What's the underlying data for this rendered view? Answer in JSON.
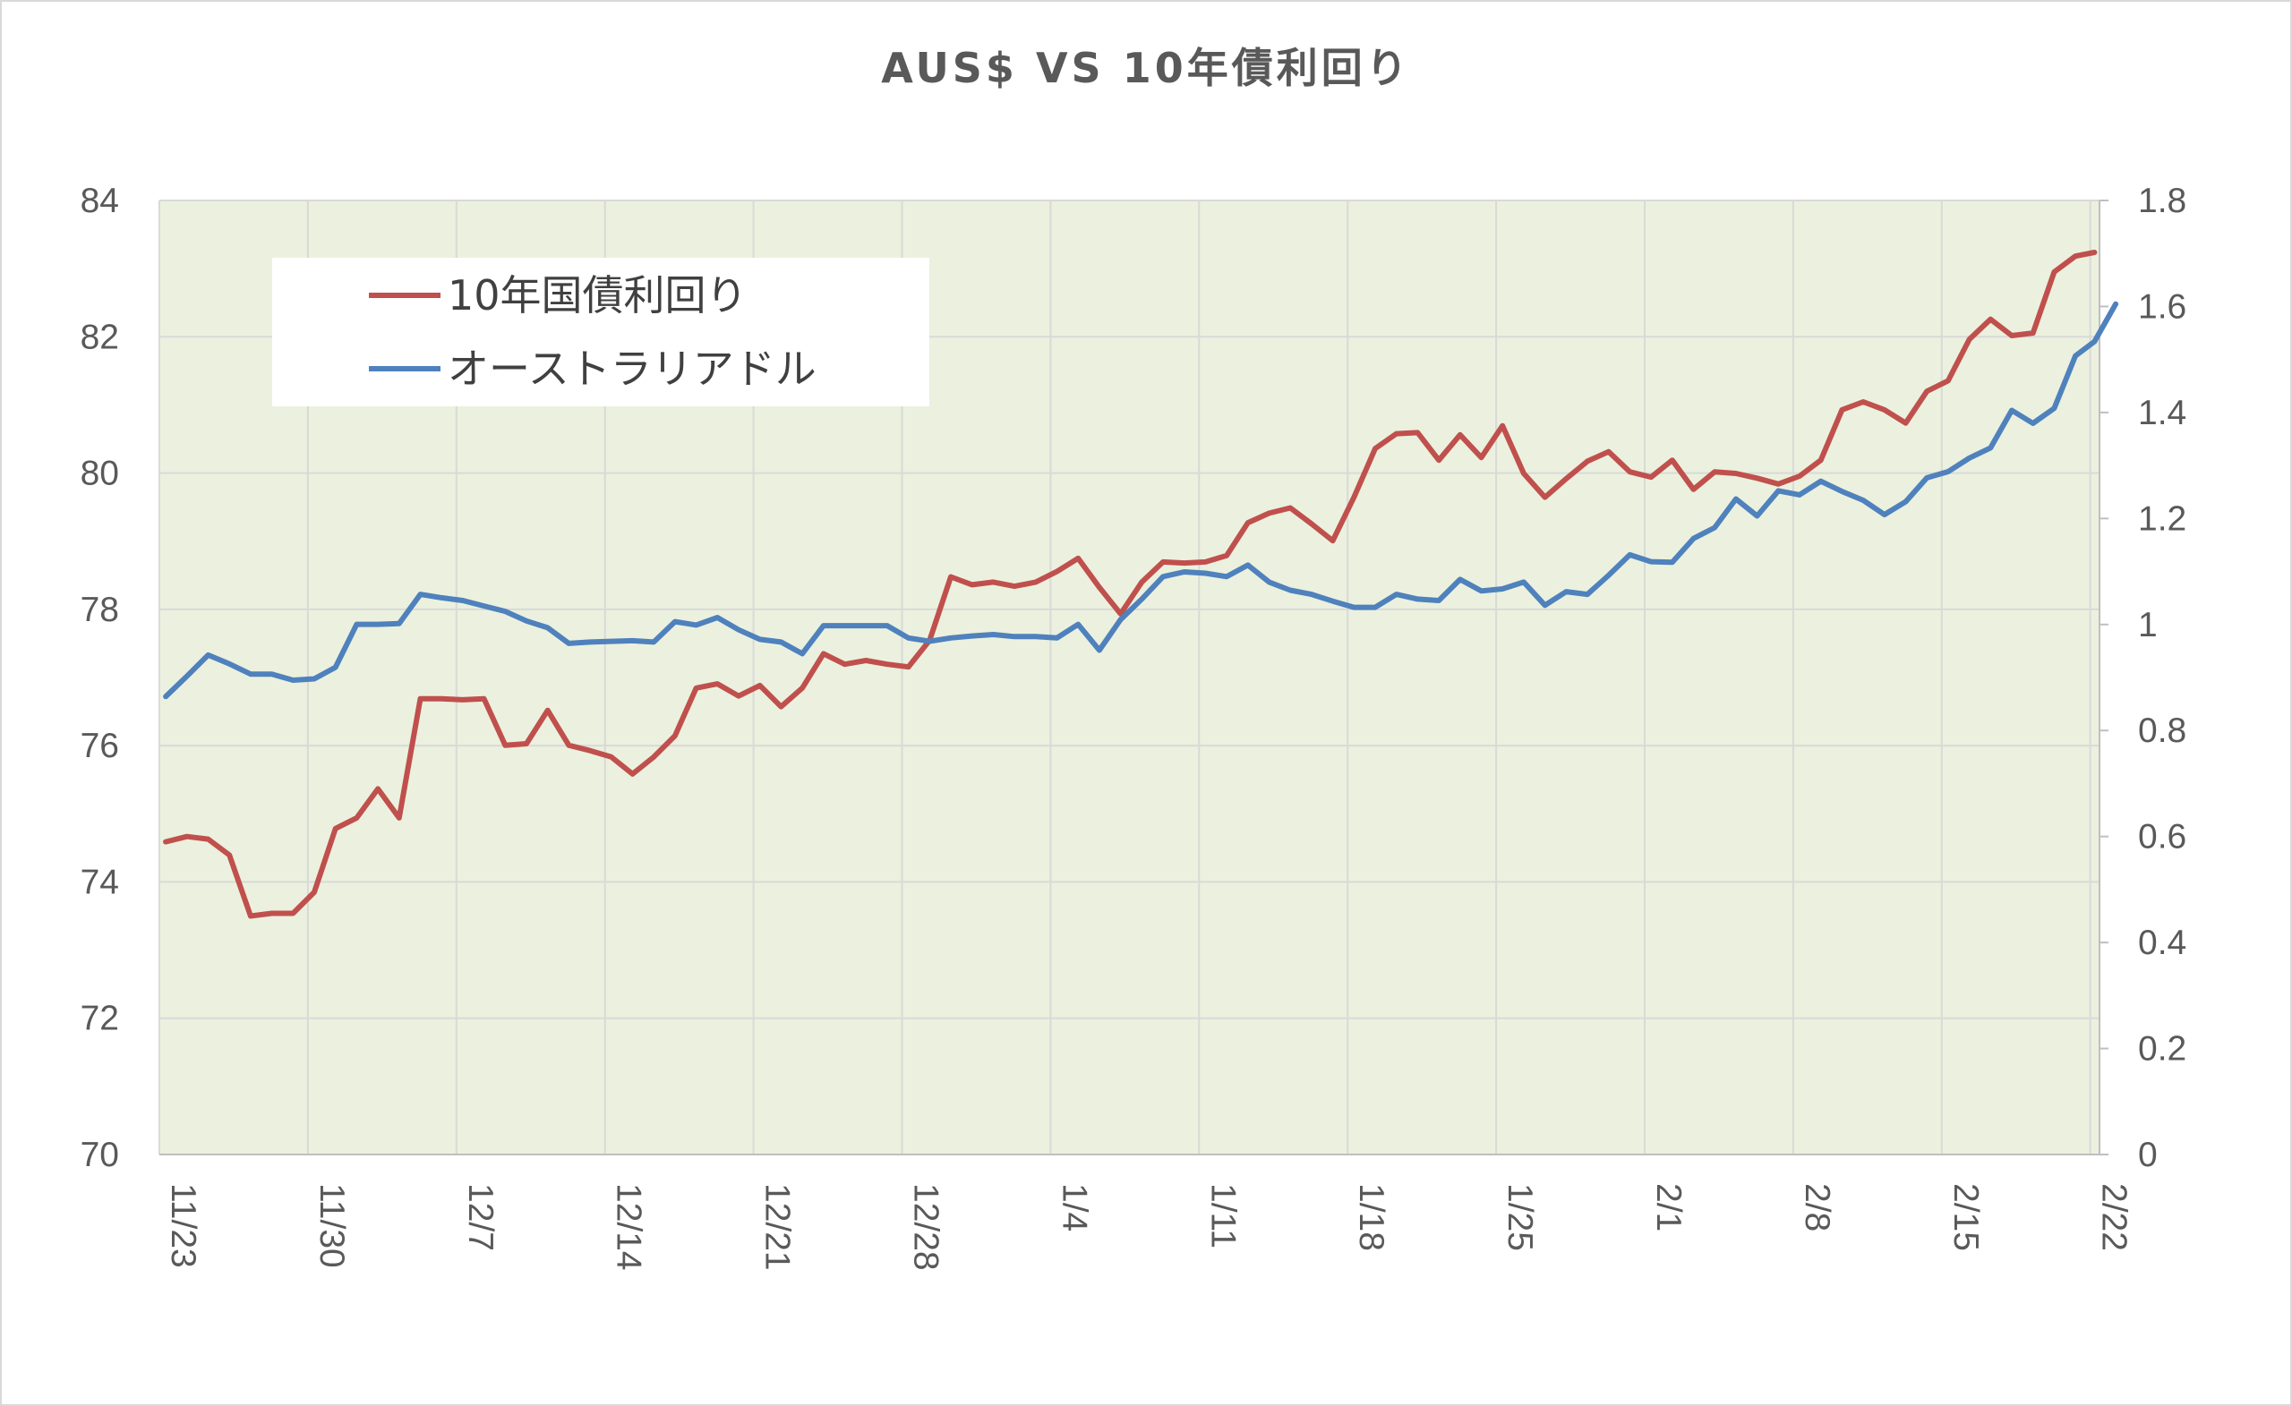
{
  "chart_data": {
    "type": "line",
    "title": "AUS$ VS 10年債利回り",
    "x_tick_labels": [
      "11/23",
      "11/30",
      "12/7",
      "12/14",
      "12/21",
      "12/28",
      "1/4",
      "1/11",
      "1/18",
      "1/25",
      "2/1",
      "2/8",
      "2/15",
      "2/22"
    ],
    "y_left": {
      "min": 70,
      "max": 84,
      "step": 2,
      "ticks": [
        "70",
        "72",
        "74",
        "76",
        "78",
        "80",
        "82",
        "84"
      ]
    },
    "y_right": {
      "min": 0,
      "max": 1.8,
      "step": 0.2,
      "ticks": [
        "0",
        "0.2",
        "0.4",
        "0.6",
        "0.8",
        "1",
        "1.2",
        "1.4",
        "1.6",
        "1.8"
      ]
    },
    "x_range_days": [
      0,
      91.5
    ],
    "grid": true,
    "plot_background": "#ebf1de",
    "legend_position": "top-left",
    "series": [
      {
        "name": "10年国債利回り",
        "axis": "right",
        "color": "#c0504d",
        "points": [
          [
            0.3,
            0.59
          ],
          [
            1.3,
            0.6
          ],
          [
            2.3,
            0.595
          ],
          [
            3.3,
            0.565
          ],
          [
            4.3,
            0.45
          ],
          [
            5.3,
            0.455
          ],
          [
            6.3,
            0.455
          ],
          [
            7.3,
            0.495
          ],
          [
            8.3,
            0.615
          ],
          [
            9.3,
            0.635
          ],
          [
            10.3,
            0.69
          ],
          [
            11.3,
            0.635
          ],
          [
            12.3,
            0.86
          ],
          [
            13.3,
            0.86
          ],
          [
            14.3,
            0.858
          ],
          [
            15.3,
            0.86
          ],
          [
            16.3,
            0.772
          ],
          [
            17.3,
            0.775
          ],
          [
            18.3,
            0.838
          ],
          [
            19.3,
            0.772
          ],
          [
            20.3,
            0.762
          ],
          [
            21.3,
            0.75
          ],
          [
            22.3,
            0.718
          ],
          [
            23.3,
            0.75
          ],
          [
            24.3,
            0.79
          ],
          [
            25.3,
            0.88
          ],
          [
            26.3,
            0.888
          ],
          [
            27.3,
            0.865
          ],
          [
            28.3,
            0.885
          ],
          [
            29.3,
            0.845
          ],
          [
            30.3,
            0.88
          ],
          [
            31.3,
            0.945
          ],
          [
            32.3,
            0.925
          ],
          [
            33.3,
            0.932
          ],
          [
            34.3,
            0.925
          ],
          [
            35.3,
            0.92
          ],
          [
            36.3,
            0.97
          ],
          [
            37.3,
            1.09
          ],
          [
            38.3,
            1.075
          ],
          [
            39.3,
            1.08
          ],
          [
            40.3,
            1.072
          ],
          [
            41.3,
            1.08
          ],
          [
            42.3,
            1.1
          ],
          [
            43.3,
            1.125
          ],
          [
            44.3,
            1.07
          ],
          [
            45.3,
            1.02
          ],
          [
            46.3,
            1.08
          ],
          [
            47.3,
            1.118
          ],
          [
            48.3,
            1.116
          ],
          [
            49.3,
            1.118
          ],
          [
            50.3,
            1.13
          ],
          [
            51.3,
            1.192
          ],
          [
            52.3,
            1.21
          ],
          [
            53.3,
            1.22
          ],
          [
            54.3,
            1.19
          ],
          [
            55.3,
            1.158
          ],
          [
            56.3,
            1.24
          ],
          [
            57.3,
            1.332
          ],
          [
            58.3,
            1.36
          ],
          [
            59.3,
            1.362
          ],
          [
            60.3,
            1.31
          ],
          [
            61.3,
            1.358
          ],
          [
            62.3,
            1.315
          ],
          [
            63.3,
            1.375
          ],
          [
            64.3,
            1.285
          ],
          [
            65.3,
            1.24
          ],
          [
            66.3,
            1.275
          ],
          [
            67.3,
            1.308
          ],
          [
            68.3,
            1.326
          ],
          [
            69.3,
            1.288
          ],
          [
            70.3,
            1.278
          ],
          [
            71.3,
            1.31
          ],
          [
            72.3,
            1.255
          ],
          [
            73.3,
            1.288
          ],
          [
            74.3,
            1.285
          ],
          [
            75.3,
            1.276
          ],
          [
            76.3,
            1.265
          ],
          [
            77.3,
            1.28
          ],
          [
            78.3,
            1.31
          ],
          [
            79.3,
            1.405
          ],
          [
            80.3,
            1.42
          ],
          [
            81.3,
            1.405
          ],
          [
            82.3,
            1.38
          ],
          [
            83.3,
            1.44
          ],
          [
            84.3,
            1.46
          ],
          [
            85.3,
            1.538
          ],
          [
            86.3,
            1.576
          ],
          [
            87.3,
            1.545
          ],
          [
            88.3,
            1.55
          ],
          [
            89.3,
            1.665
          ],
          [
            90.3,
            1.695
          ],
          [
            91.2,
            1.702
          ]
        ]
      },
      {
        "name": "オーストラリアドル",
        "axis": "left",
        "color": "#4f81bd",
        "points": [
          [
            0.3,
            76.72
          ],
          [
            1.3,
            77.02
          ],
          [
            2.3,
            77.33
          ],
          [
            3.3,
            77.2
          ],
          [
            4.3,
            77.05
          ],
          [
            5.3,
            77.05
          ],
          [
            6.3,
            76.96
          ],
          [
            7.3,
            76.98
          ],
          [
            8.3,
            77.15
          ],
          [
            9.3,
            77.78
          ],
          [
            10.3,
            77.78
          ],
          [
            11.3,
            77.79
          ],
          [
            12.3,
            78.22
          ],
          [
            13.3,
            78.17
          ],
          [
            14.3,
            78.13
          ],
          [
            15.3,
            78.05
          ],
          [
            16.3,
            77.97
          ],
          [
            17.3,
            77.83
          ],
          [
            18.3,
            77.73
          ],
          [
            19.3,
            77.5
          ],
          [
            20.3,
            77.52
          ],
          [
            21.3,
            77.53
          ],
          [
            22.3,
            77.54
          ],
          [
            23.3,
            77.52
          ],
          [
            24.3,
            77.82
          ],
          [
            25.3,
            77.77
          ],
          [
            26.3,
            77.88
          ],
          [
            27.3,
            77.7
          ],
          [
            28.3,
            77.56
          ],
          [
            29.3,
            77.52
          ],
          [
            30.3,
            77.35
          ],
          [
            31.3,
            77.76
          ],
          [
            32.3,
            77.76
          ],
          [
            33.3,
            77.76
          ],
          [
            34.3,
            77.76
          ],
          [
            35.3,
            77.58
          ],
          [
            36.3,
            77.53
          ],
          [
            37.3,
            77.58
          ],
          [
            38.3,
            77.61
          ],
          [
            39.3,
            77.63
          ],
          [
            40.3,
            77.6
          ],
          [
            41.3,
            77.6
          ],
          [
            42.3,
            77.58
          ],
          [
            43.3,
            77.78
          ],
          [
            44.3,
            77.4
          ],
          [
            45.3,
            77.85
          ],
          [
            46.3,
            78.15
          ],
          [
            47.3,
            78.48
          ],
          [
            48.3,
            78.55
          ],
          [
            49.3,
            78.53
          ],
          [
            50.3,
            78.48
          ],
          [
            51.3,
            78.65
          ],
          [
            52.3,
            78.4
          ],
          [
            53.3,
            78.28
          ],
          [
            54.3,
            78.22
          ],
          [
            55.3,
            78.12
          ],
          [
            56.3,
            78.03
          ],
          [
            57.3,
            78.03
          ],
          [
            58.3,
            78.22
          ],
          [
            59.3,
            78.15
          ],
          [
            60.3,
            78.13
          ],
          [
            61.3,
            78.44
          ],
          [
            62.3,
            78.27
          ],
          [
            63.3,
            78.3
          ],
          [
            64.3,
            78.4
          ],
          [
            65.3,
            78.06
          ],
          [
            66.3,
            78.26
          ],
          [
            67.3,
            78.22
          ],
          [
            68.3,
            78.5
          ],
          [
            69.3,
            78.8
          ],
          [
            70.3,
            78.7
          ],
          [
            71.3,
            78.69
          ],
          [
            72.3,
            79.04
          ],
          [
            73.3,
            79.2
          ],
          [
            74.3,
            79.62
          ],
          [
            75.3,
            79.37
          ],
          [
            76.3,
            79.74
          ],
          [
            77.3,
            79.68
          ],
          [
            78.3,
            79.88
          ],
          [
            79.3,
            79.73
          ],
          [
            80.3,
            79.6
          ],
          [
            81.3,
            79.39
          ],
          [
            82.3,
            79.58
          ],
          [
            83.3,
            79.93
          ],
          [
            84.3,
            80.02
          ],
          [
            85.3,
            80.22
          ],
          [
            86.3,
            80.37
          ],
          [
            87.3,
            80.92
          ],
          [
            88.3,
            80.73
          ],
          [
            89.3,
            80.95
          ],
          [
            90.3,
            81.72
          ],
          [
            91.2,
            81.93
          ],
          [
            92.2,
            82.48
          ]
        ]
      }
    ]
  }
}
